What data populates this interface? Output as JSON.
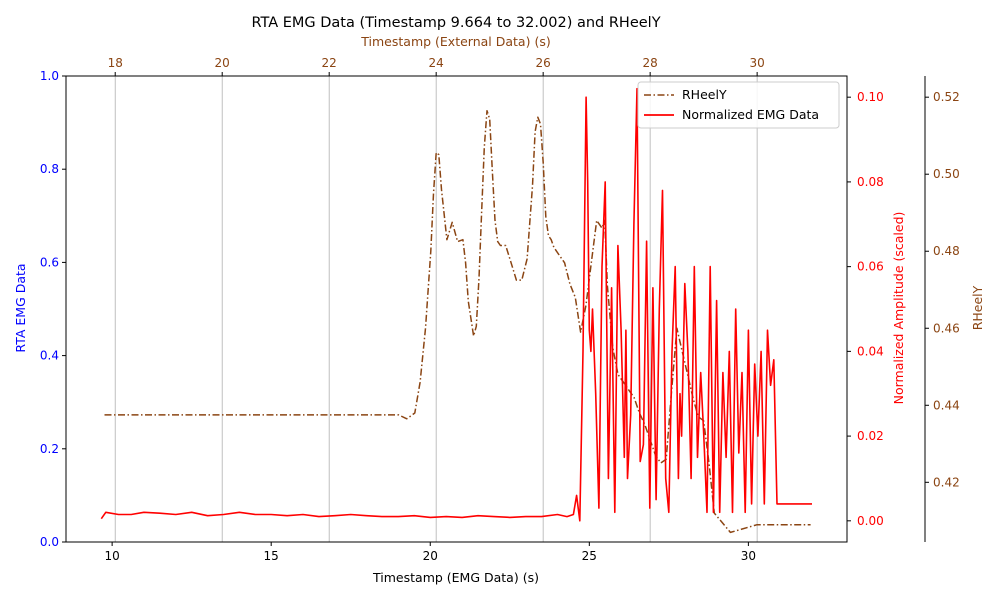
{
  "chart_data": {
    "type": "line",
    "title": "RTA EMG Data (Timestamp 9.664 to 32.002) and RHeelY",
    "x_bottom": {
      "label": "Timestamp (EMG Data) (s)",
      "range": [
        8.55,
        33.1
      ],
      "ticks": [
        10,
        15,
        20,
        25,
        30
      ],
      "tick_labels": [
        "10",
        "15",
        "20",
        "25",
        "30"
      ]
    },
    "x_top": {
      "label": "Timestamp (External Data) (s)",
      "range": [
        17.08,
        31.68
      ],
      "ticks": [
        18,
        20,
        22,
        24,
        26,
        28,
        30
      ],
      "tick_labels": [
        "18",
        "20",
        "22",
        "24",
        "26",
        "28",
        "30"
      ],
      "grid": true,
      "color": "#8B4513"
    },
    "y_left": {
      "label": "RTA EMG Data",
      "range": [
        0.0,
        1.0
      ],
      "ticks": [
        0.0,
        0.2,
        0.4,
        0.6,
        0.8,
        1.0
      ],
      "tick_labels": [
        "0.0",
        "0.2",
        "0.4",
        "0.6",
        "0.8",
        "1.0"
      ],
      "color": "#0000ff"
    },
    "y_right_1": {
      "label": "Normalized Amplitude (scaled)",
      "range": [
        -0.005,
        0.105
      ],
      "ticks": [
        0.0,
        0.02,
        0.04,
        0.06,
        0.08,
        0.1
      ],
      "tick_labels": [
        "0.00",
        "0.02",
        "0.04",
        "0.06",
        "0.08",
        "0.10"
      ],
      "color": "#ff0000"
    },
    "y_right_2": {
      "label": "RHeelY",
      "range": [
        0.4045,
        0.5255
      ],
      "ticks": [
        0.42,
        0.44,
        0.46,
        0.48,
        0.5,
        0.52
      ],
      "tick_labels": [
        "0.42",
        "0.44",
        "0.46",
        "0.48",
        "0.50",
        "0.52"
      ],
      "color": "#8B4513"
    },
    "legend_position": "top-right",
    "series": [
      {
        "name": "RHeelY",
        "axis_x": "x_top",
        "axis_y": "y_right_2",
        "color": "#8B4513",
        "style": "dashdot",
        "x": [
          17.8,
          18.5,
          19.5,
          20.5,
          21.5,
          22.5,
          23.3,
          23.45,
          23.6,
          23.7,
          23.8,
          23.9,
          23.95,
          24.0,
          24.05,
          24.1,
          24.2,
          24.3,
          24.4,
          24.5,
          24.55,
          24.6,
          24.7,
          24.75,
          24.8,
          24.85,
          24.9,
          24.95,
          25.0,
          25.05,
          25.1,
          25.15,
          25.2,
          25.3,
          25.4,
          25.5,
          25.6,
          25.7,
          25.8,
          25.85,
          25.9,
          25.95,
          26.0,
          26.05,
          26.1,
          26.15,
          26.2,
          26.3,
          26.4,
          26.5,
          26.6,
          26.7,
          26.8,
          26.9,
          27.0,
          27.1,
          27.15,
          27.2,
          27.3,
          27.4,
          27.5,
          27.6,
          27.7,
          27.8,
          27.9,
          28.0,
          28.1,
          28.2,
          28.3,
          28.4,
          28.5,
          28.6,
          28.7,
          28.8,
          28.9,
          29.0,
          29.1,
          29.2,
          29.5,
          30.0,
          30.5,
          31.0
        ],
        "y": [
          0.4375,
          0.4375,
          0.4375,
          0.4375,
          0.4375,
          0.4375,
          0.4375,
          0.4365,
          0.438,
          0.446,
          0.46,
          0.48,
          0.495,
          0.5056,
          0.5051,
          0.496,
          0.483,
          0.4875,
          0.4825,
          0.483,
          0.477,
          0.467,
          0.458,
          0.4605,
          0.473,
          0.49,
          0.507,
          0.5165,
          0.5143,
          0.501,
          0.488,
          0.4825,
          0.4815,
          0.4815,
          0.477,
          0.4725,
          0.4725,
          0.478,
          0.497,
          0.511,
          0.5148,
          0.513,
          0.503,
          0.489,
          0.484,
          0.483,
          0.481,
          0.479,
          0.477,
          0.4715,
          0.468,
          0.459,
          0.466,
          0.477,
          0.488,
          0.486,
          0.488,
          0.471,
          0.455,
          0.448,
          0.446,
          0.444,
          0.442,
          0.438,
          0.435,
          0.431,
          0.427,
          0.425,
          0.426,
          0.4435,
          0.46,
          0.454,
          0.448,
          0.442,
          0.437,
          0.436,
          0.425,
          0.412,
          0.407,
          0.409,
          0.409,
          0.409
        ]
      },
      {
        "name": "Normalized EMG Data",
        "axis_x": "x_bottom",
        "axis_y": "y_right_1",
        "color": "#ff0000",
        "style": "solid",
        "x": [
          9.66,
          9.8,
          10.2,
          10.6,
          11.0,
          11.5,
          12.0,
          12.5,
          13.0,
          13.5,
          14.0,
          14.5,
          15.0,
          15.5,
          16.0,
          16.5,
          17.0,
          17.5,
          18.0,
          18.5,
          19.0,
          19.5,
          20.0,
          20.5,
          21.0,
          21.5,
          22.0,
          22.5,
          23.0,
          23.5,
          24.0,
          24.3,
          24.5,
          24.6,
          24.7,
          24.8,
          24.9,
          24.95,
          25.0,
          25.05,
          25.1,
          25.2,
          25.3,
          25.4,
          25.5,
          25.6,
          25.7,
          25.8,
          25.9,
          26.0,
          26.1,
          26.15,
          26.2,
          26.3,
          26.4,
          26.5,
          26.6,
          26.7,
          26.8,
          26.9,
          27.0,
          27.05,
          27.1,
          27.2,
          27.3,
          27.4,
          27.5,
          27.6,
          27.7,
          27.8,
          27.85,
          27.9,
          28.0,
          28.1,
          28.2,
          28.3,
          28.4,
          28.5,
          28.6,
          28.7,
          28.8,
          28.9,
          29.0,
          29.1,
          29.2,
          29.3,
          29.4,
          29.5,
          29.6,
          29.7,
          29.8,
          29.9,
          30.0,
          30.1,
          30.2,
          30.3,
          30.4,
          30.5,
          30.6,
          30.7,
          30.8,
          30.9,
          31.0,
          31.1,
          31.2,
          31.3,
          31.4,
          31.5,
          31.6,
          31.7,
          31.8,
          31.9,
          32.0
        ],
        "y": [
          0.0005,
          0.002,
          0.0015,
          0.0015,
          0.002,
          0.0018,
          0.0015,
          0.002,
          0.0012,
          0.0015,
          0.002,
          0.0015,
          0.0015,
          0.0012,
          0.0015,
          0.001,
          0.0012,
          0.0015,
          0.0012,
          0.001,
          0.001,
          0.0012,
          0.0008,
          0.001,
          0.0008,
          0.0012,
          0.001,
          0.0008,
          0.001,
          0.001,
          0.0015,
          0.001,
          0.0015,
          0.006,
          0.0,
          0.04,
          0.1,
          0.08,
          0.045,
          0.04,
          0.05,
          0.03,
          0.003,
          0.06,
          0.08,
          0.01,
          0.055,
          0.002,
          0.065,
          0.045,
          0.015,
          0.045,
          0.01,
          0.025,
          0.07,
          0.102,
          0.014,
          0.018,
          0.066,
          0.003,
          0.055,
          0.03,
          0.005,
          0.05,
          0.078,
          0.01,
          0.002,
          0.04,
          0.06,
          0.01,
          0.03,
          0.02,
          0.056,
          0.04,
          0.01,
          0.06,
          0.015,
          0.035,
          0.02,
          0.002,
          0.06,
          0.002,
          0.052,
          0.002,
          0.035,
          0.015,
          0.04,
          0.002,
          0.05,
          0.016,
          0.035,
          0.002,
          0.045,
          0.004,
          0.037,
          0.02,
          0.04,
          0.004,
          0.045,
          0.032,
          0.038,
          0.004,
          0.004,
          0.004,
          0.004,
          0.004,
          0.004,
          0.004,
          0.004,
          0.004,
          0.004,
          0.004,
          0.004
        ]
      }
    ],
    "emg_points_note_free": true
  }
}
